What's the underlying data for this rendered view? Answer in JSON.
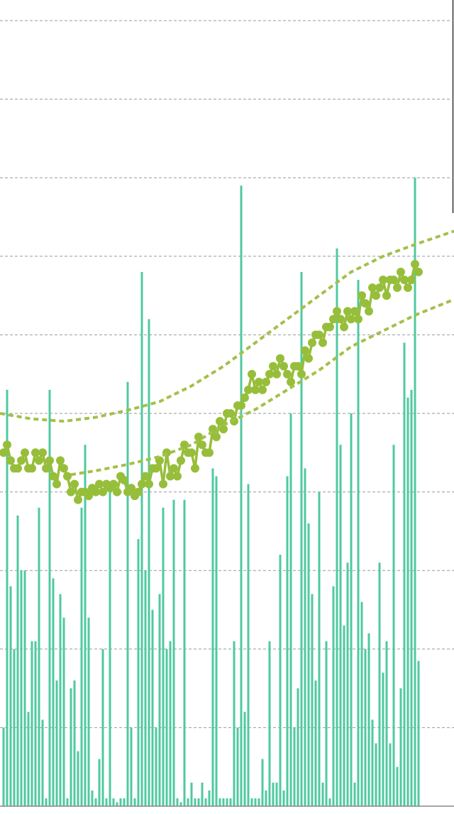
{
  "chart_data": {
    "type": "combo",
    "xlim": [
      -1,
      127
    ],
    "ylim": [
      0,
      10
    ],
    "yticks": [
      0,
      1,
      2,
      3,
      4,
      5,
      6,
      7,
      8,
      9,
      10
    ],
    "grid": true,
    "series": [
      {
        "type": "bar",
        "color": "#4fc9a0",
        "values": [
          1.0,
          5.3,
          2.8,
          2.0,
          3.7,
          3.0,
          3.0,
          1.2,
          2.1,
          2.1,
          3.8,
          1.1,
          0.1,
          5.3,
          2.9,
          1.6,
          2.7,
          2.4,
          0.1,
          1.5,
          1.6,
          0.7,
          3.8,
          4.6,
          2.4,
          0.2,
          0.1,
          0.6,
          2.0,
          0.1,
          4.0,
          0.1,
          0.05,
          0.1,
          0.1,
          5.4,
          1.0,
          0.1,
          3.4,
          6.8,
          3.0,
          6.2,
          2.5,
          1.0,
          2.7,
          3.8,
          2.0,
          2.1,
          3.9,
          0.1,
          0.05,
          3.9,
          0.1,
          0.3,
          0.1,
          0.1,
          0.3,
          0.1,
          0.2,
          4.3,
          4.2,
          0.1,
          0.1,
          0.1,
          0.1,
          2.1,
          1.0,
          7.9,
          1.2,
          4.1,
          0.1,
          0.1,
          0.1,
          0.6,
          0.2,
          2.1,
          0.3,
          0.3,
          3.2,
          0.2,
          4.2,
          5.0,
          1.0,
          1.5,
          6.8,
          4.3,
          3.6,
          2.7,
          1.6,
          4.0,
          0.3,
          2.1,
          0.1,
          2.8,
          7.1,
          4.6,
          2.3,
          3.1,
          5.0,
          0.3,
          6.7,
          2.6,
          2.0,
          2.2,
          1.1,
          0.8,
          3.1,
          1.7,
          2.1,
          0.8,
          4.6,
          0.5,
          1.5,
          5.9,
          5.2,
          5.3,
          8.0,
          1.85
        ]
      },
      {
        "type": "line-dots",
        "color": "#97be3a",
        "values": [
          4.5,
          4.6,
          4.4,
          4.3,
          4.3,
          4.4,
          4.5,
          4.3,
          4.3,
          4.5,
          4.4,
          4.5,
          4.3,
          4.4,
          4.2,
          4.1,
          4.4,
          4.3,
          4.2,
          4.0,
          4.1,
          3.9,
          4.0,
          4.0,
          3.95,
          4.05,
          4.0,
          4.1,
          4.0,
          4.1,
          4.05,
          4.1,
          4.0,
          4.2,
          4.15,
          4.0,
          4.05,
          3.95,
          4.0,
          4.1,
          4.2,
          4.1,
          4.3,
          4.3,
          4.4,
          4.1,
          4.5,
          4.2,
          4.3,
          4.2,
          4.4,
          4.6,
          4.5,
          4.5,
          4.3,
          4.7,
          4.6,
          4.5,
          4.5,
          4.8,
          4.7,
          4.9,
          4.8,
          5.0,
          5.0,
          4.9,
          5.1,
          5.1,
          5.2,
          5.3,
          5.5,
          5.3,
          5.4,
          5.3,
          5.4,
          5.5,
          5.6,
          5.5,
          5.7,
          5.6,
          5.5,
          5.4,
          5.6,
          5.6,
          5.5,
          5.8,
          5.7,
          5.9,
          6.0,
          6.0,
          5.9,
          6.1,
          6.1,
          6.2,
          6.3,
          6.2,
          6.1,
          6.3,
          6.2,
          6.3,
          6.2,
          6.5,
          6.4,
          6.3,
          6.6,
          6.5,
          6.6,
          6.7,
          6.5,
          6.7,
          6.7,
          6.6,
          6.8,
          6.7,
          6.6,
          6.7,
          6.9,
          6.8
        ]
      },
      {
        "type": "dotted-line",
        "color": "#a3c04a",
        "x": [
          -1,
          8,
          17,
          26,
          35,
          44,
          53,
          62,
          71,
          80,
          89,
          98,
          107,
          116,
          127
        ],
        "values": [
          5.0,
          4.93,
          4.9,
          4.95,
          5.04,
          5.15,
          5.35,
          5.6,
          5.9,
          6.2,
          6.5,
          6.8,
          7.0,
          7.15,
          7.32
        ]
      },
      {
        "type": "dotted-line",
        "color": "#a3c04a",
        "x": [
          19,
          26,
          35,
          44,
          53,
          62,
          71,
          80,
          89,
          98,
          107,
          116,
          127
        ],
        "values": [
          4.22,
          4.27,
          4.35,
          4.45,
          4.6,
          4.85,
          5.05,
          5.3,
          5.55,
          5.85,
          6.05,
          6.25,
          6.45
        ]
      }
    ]
  }
}
